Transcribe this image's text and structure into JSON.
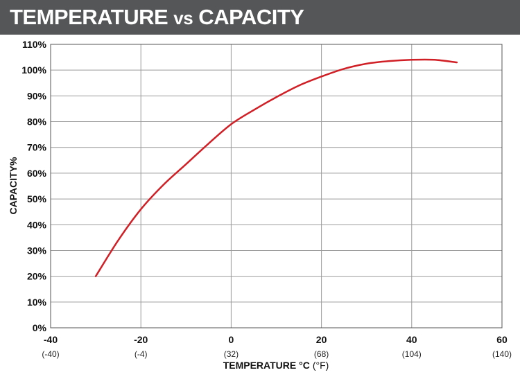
{
  "chart_data": {
    "type": "line",
    "title": "TEMPERATURE vs CAPACITY",
    "xlabel": "TEMPERATURE °C",
    "xlabel_unit": "(°F)",
    "ylabel": "CAPACITY%",
    "xlim": [
      -40,
      60
    ],
    "ylim": [
      0,
      110
    ],
    "grid": true,
    "x_ticks": [
      {
        "value": -40,
        "label": "-40",
        "sub": "(-40)"
      },
      {
        "value": -20,
        "label": "-20",
        "sub": "(-4)"
      },
      {
        "value": 0,
        "label": "0",
        "sub": "(32)"
      },
      {
        "value": 20,
        "label": "20",
        "sub": "(68)"
      },
      {
        "value": 40,
        "label": "40",
        "sub": "(104)"
      },
      {
        "value": 60,
        "label": "60",
        "sub": "(140)"
      }
    ],
    "y_ticks": [
      {
        "value": 0,
        "label": "0%"
      },
      {
        "value": 10,
        "label": "10%"
      },
      {
        "value": 20,
        "label": "20%"
      },
      {
        "value": 30,
        "label": "30%"
      },
      {
        "value": 40,
        "label": "40%"
      },
      {
        "value": 50,
        "label": "50%"
      },
      {
        "value": 60,
        "label": "60%"
      },
      {
        "value": 70,
        "label": "70%"
      },
      {
        "value": 80,
        "label": "80%"
      },
      {
        "value": 90,
        "label": "90%"
      },
      {
        "value": 100,
        "label": "100%"
      },
      {
        "value": 110,
        "label": "110%"
      }
    ],
    "series": [
      {
        "color": "#d11f26",
        "x": [
          -30,
          -25,
          -20,
          -15,
          -10,
          -5,
          0,
          5,
          10,
          15,
          20,
          25,
          30,
          35,
          40,
          45,
          50
        ],
        "y": [
          20,
          34,
          46,
          55.5,
          63.5,
          71.5,
          79,
          84.5,
          89.5,
          94,
          97.5,
          100.5,
          102.5,
          103.5,
          104,
          104,
          103
        ]
      }
    ]
  },
  "colors": {
    "title_bar": "#555657",
    "grid": "#9a9a9a",
    "frame": "#555555",
    "line": "#d11f26"
  }
}
